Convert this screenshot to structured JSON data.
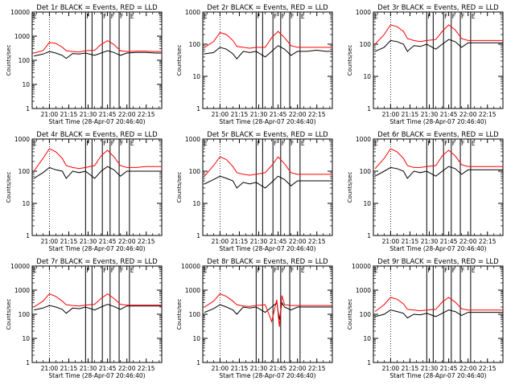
{
  "colors": {
    "events": "#000000",
    "lld": "#ff0000",
    "frame": "#000000",
    "background": "#ffffff"
  },
  "shared_axes": {
    "ylabel": "Counts/sec",
    "xlabel": "Start Time (28-Apr-07 20:46:40)",
    "x_tick_labels": [
      "21:00",
      "21:15",
      "21:30",
      "21:45",
      "22:00",
      "22:15"
    ],
    "x_tick_minutes": [
      0,
      15,
      30,
      45,
      60,
      75
    ],
    "y_tick_labels": [
      "1",
      "10",
      "100",
      "1000",
      "10000"
    ],
    "y_tick_values": [
      1,
      10,
      100,
      1000,
      10000
    ],
    "xlim_minutes_after_2100": [
      -13.33,
      87
    ],
    "ylim": [
      1,
      10000
    ],
    "y_scale": "log",
    "x_unit": "minutes after 21:00",
    "attenuator_flag_labels": [
      "F",
      "F",
      "F",
      "F",
      "E"
    ]
  },
  "chart_data": [
    {
      "type": "line",
      "title": "Det 1r BLACK = Events, RED = LLD",
      "x": [
        -12,
        -5,
        0,
        5,
        10,
        13,
        18,
        23,
        28,
        35,
        40,
        45,
        50,
        55,
        60,
        67,
        75,
        82,
        87
      ],
      "series": [
        {
          "key": "events",
          "values": [
            150,
            180,
            230,
            200,
            160,
            120,
            190,
            180,
            200,
            160,
            200,
            250,
            210,
            160,
            200,
            210,
            210,
            200,
            200
          ]
        },
        {
          "key": "lld",
          "values": [
            200,
            250,
            550,
            500,
            350,
            250,
            230,
            220,
            250,
            260,
            450,
            650,
            450,
            250,
            230,
            240,
            240,
            230,
            230
          ]
        }
      ],
      "attenuator_markers_minutes": [
        28,
        33,
        41,
        47,
        54,
        62
      ],
      "xlim": [
        -13.33,
        87
      ],
      "ylim": [
        1,
        10000
      ]
    },
    {
      "type": "line",
      "title": "Det 2r BLACK = Events, RED = LLD",
      "x": [
        -12,
        -5,
        0,
        5,
        10,
        13,
        18,
        23,
        28,
        35,
        40,
        45,
        50,
        55,
        60,
        67,
        75,
        82,
        87
      ],
      "series": [
        {
          "key": "events",
          "values": [
            50,
            55,
            80,
            70,
            50,
            35,
            60,
            55,
            60,
            40,
            60,
            90,
            70,
            45,
            60,
            60,
            65,
            60,
            60
          ]
        },
        {
          "key": "lld",
          "values": [
            80,
            120,
            230,
            200,
            130,
            85,
            80,
            75,
            80,
            80,
            160,
            250,
            160,
            90,
            80,
            80,
            80,
            80,
            80
          ]
        }
      ],
      "attenuator_markers_minutes": [
        28,
        33,
        41,
        47,
        54,
        62
      ],
      "xlim": [
        -13.33,
        87
      ],
      "ylim": [
        1,
        1000
      ]
    },
    {
      "type": "line",
      "title": "Det 3r BLACK = Events, RED = LLD",
      "x": [
        -12,
        -5,
        0,
        5,
        10,
        13,
        18,
        23,
        28,
        35,
        40,
        45,
        50,
        55,
        60,
        67,
        75,
        82,
        87
      ],
      "series": [
        {
          "key": "events",
          "values": [
            60,
            80,
            130,
            120,
            100,
            60,
            90,
            85,
            100,
            70,
            100,
            140,
            120,
            80,
            110,
            110,
            110,
            110,
            110
          ]
        },
        {
          "key": "lld",
          "values": [
            100,
            200,
            400,
            350,
            250,
            150,
            130,
            120,
            130,
            140,
            250,
            400,
            280,
            150,
            130,
            130,
            130,
            130,
            130
          ]
        }
      ],
      "attenuator_markers_minutes": [
        28,
        33,
        41,
        47,
        54,
        62
      ],
      "xlim": [
        -13.33,
        87
      ],
      "ylim": [
        1,
        1000
      ]
    },
    {
      "type": "line",
      "title": "Det 4r BLACK = Events, RED = LLD",
      "x": [
        -12,
        -5,
        0,
        5,
        10,
        13,
        18,
        23,
        28,
        35,
        40,
        45,
        50,
        55,
        60,
        67,
        75,
        82,
        87
      ],
      "series": [
        {
          "key": "events",
          "values": [
            60,
            90,
            130,
            110,
            100,
            60,
            100,
            90,
            100,
            60,
            100,
            140,
            110,
            70,
            100,
            100,
            100,
            100,
            100
          ]
        },
        {
          "key": "lld",
          "values": [
            100,
            250,
            500,
            400,
            250,
            150,
            130,
            120,
            130,
            150,
            300,
            450,
            280,
            150,
            130,
            130,
            140,
            140,
            140
          ]
        }
      ],
      "attenuator_markers_minutes": [
        28,
        33,
        41,
        47,
        54,
        62
      ],
      "xlim": [
        -13.33,
        87
      ],
      "ylim": [
        1,
        1000
      ]
    },
    {
      "type": "line",
      "title": "Det 5r BLACK = Events, RED = LLD",
      "x": [
        -12,
        -5,
        0,
        5,
        10,
        13,
        18,
        23,
        28,
        35,
        40,
        45,
        50,
        55,
        60,
        67,
        75,
        82,
        87
      ],
      "series": [
        {
          "key": "events",
          "values": [
            40,
            55,
            70,
            60,
            50,
            30,
            45,
            40,
            45,
            30,
            45,
            70,
            55,
            35,
            50,
            50,
            50,
            50,
            50
          ]
        },
        {
          "key": "lld",
          "values": [
            70,
            150,
            280,
            230,
            140,
            90,
            80,
            75,
            80,
            90,
            150,
            280,
            170,
            90,
            80,
            80,
            80,
            80,
            80
          ]
        }
      ],
      "attenuator_markers_minutes": [
        28,
        33,
        41,
        47,
        54,
        62
      ],
      "xlim": [
        -13.33,
        87
      ],
      "ylim": [
        1,
        1000
      ]
    },
    {
      "type": "line",
      "title": "Det 6r BLACK = Events, RED = LLD",
      "x": [
        -12,
        -5,
        0,
        5,
        10,
        13,
        18,
        23,
        28,
        35,
        40,
        45,
        50,
        55,
        60,
        67,
        75,
        82,
        87
      ],
      "series": [
        {
          "key": "events",
          "values": [
            70,
            100,
            130,
            120,
            100,
            60,
            100,
            90,
            100,
            70,
            100,
            140,
            120,
            80,
            110,
            110,
            110,
            110,
            110
          ]
        },
        {
          "key": "lld",
          "values": [
            120,
            250,
            500,
            400,
            250,
            150,
            130,
            130,
            140,
            150,
            300,
            450,
            300,
            160,
            140,
            140,
            140,
            140,
            140
          ]
        }
      ],
      "attenuator_markers_minutes": [
        28,
        33,
        41,
        47,
        54,
        62
      ],
      "xlim": [
        -13.33,
        87
      ],
      "ylim": [
        1,
        1000
      ]
    },
    {
      "type": "line",
      "title": "Det 7r BLACK = Events, RED = LLD",
      "x": [
        -12,
        -5,
        0,
        5,
        10,
        13,
        18,
        23,
        28,
        35,
        40,
        45,
        50,
        55,
        60,
        67,
        75,
        82,
        87
      ],
      "series": [
        {
          "key": "events",
          "values": [
            150,
            180,
            230,
            200,
            160,
            110,
            180,
            170,
            200,
            150,
            200,
            260,
            210,
            160,
            220,
            220,
            220,
            220,
            220
          ]
        },
        {
          "key": "lld",
          "values": [
            200,
            350,
            700,
            550,
            350,
            250,
            230,
            220,
            240,
            260,
            450,
            700,
            450,
            260,
            240,
            240,
            240,
            240,
            240
          ]
        }
      ],
      "attenuator_markers_minutes": [
        28,
        33,
        41,
        47,
        54,
        62
      ],
      "xlim": [
        -13.33,
        87
      ],
      "ylim": [
        1,
        10000
      ]
    },
    {
      "type": "line",
      "title": "Det 8r BLACK = Events, RED = LLD",
      "x": [
        -12,
        -5,
        0,
        5,
        10,
        13,
        18,
        23,
        28,
        35,
        40,
        44,
        46,
        48,
        50,
        55,
        60,
        67,
        75,
        82,
        87
      ],
      "series": [
        {
          "key": "events",
          "values": [
            120,
            170,
            250,
            200,
            150,
            100,
            200,
            180,
            200,
            120,
            200,
            300,
            60,
            300,
            200,
            150,
            200,
            200,
            200,
            200,
            200
          ]
        },
        {
          "key": "lld",
          "values": [
            200,
            350,
            700,
            550,
            350,
            250,
            220,
            210,
            230,
            250,
            50,
            400,
            30,
            600,
            250,
            230,
            230,
            230,
            230,
            230,
            230
          ]
        }
      ],
      "attenuator_markers_minutes": [
        28,
        33,
        41,
        47,
        54,
        62
      ],
      "xlim": [
        -13.33,
        87
      ],
      "ylim": [
        1,
        10000
      ]
    },
    {
      "type": "line",
      "title": "Det 9r BLACK = Events, RED = LLD",
      "x": [
        -12,
        -5,
        0,
        5,
        10,
        13,
        18,
        23,
        28,
        35,
        40,
        45,
        50,
        55,
        60,
        67,
        75,
        82,
        87
      ],
      "series": [
        {
          "key": "events",
          "values": [
            80,
            100,
            150,
            130,
            110,
            70,
            100,
            95,
            110,
            80,
            110,
            150,
            130,
            90,
            120,
            120,
            120,
            120,
            120
          ]
        },
        {
          "key": "lld",
          "values": [
            130,
            250,
            500,
            420,
            270,
            160,
            150,
            140,
            150,
            160,
            320,
            500,
            320,
            170,
            150,
            150,
            150,
            150,
            150
          ]
        }
      ],
      "attenuator_markers_minutes": [
        28,
        33,
        41,
        47,
        54,
        62
      ],
      "xlim": [
        -13.33,
        87
      ],
      "ylim": [
        1,
        10000
      ]
    }
  ]
}
